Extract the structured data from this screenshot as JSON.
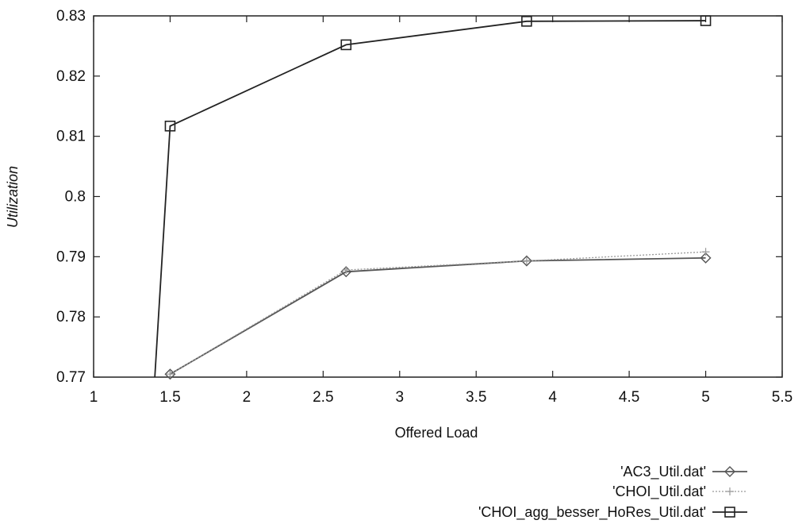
{
  "chart_data": {
    "type": "line",
    "xlabel": "Offered Load",
    "ylabel": "Utilization",
    "xlim": [
      1,
      5.5
    ],
    "ylim": [
      0.77,
      0.83
    ],
    "xticks": [
      "1",
      "1.5",
      "2",
      "2.5",
      "3",
      "3.5",
      "4",
      "4.5",
      "5",
      "5.5"
    ],
    "yticks": [
      "0.77",
      "0.78",
      "0.79",
      "0.8",
      "0.81",
      "0.82",
      "0.83"
    ],
    "legend_position": "bottom-right, below plot",
    "series": [
      {
        "name": "'AC3_Util.dat'",
        "marker": "diamond",
        "line": "solid",
        "color": "#555555",
        "x": [
          1.5,
          2.65,
          3.83,
          5.0
        ],
        "y": [
          0.7705,
          0.7875,
          0.7893,
          0.7898
        ]
      },
      {
        "name": "'CHOI_Util.dat'",
        "marker": "plus",
        "line": "dotted",
        "color": "#999999",
        "x": [
          1.5,
          2.65,
          3.83,
          5.0
        ],
        "y": [
          0.7705,
          0.7878,
          0.7893,
          0.7908
        ]
      },
      {
        "name": "'CHOI_agg_besser_HoRes_Util.dat'",
        "marker": "square",
        "line": "solid",
        "color": "#222222",
        "x": [
          1.4,
          1.5,
          2.65,
          3.83,
          5.0
        ],
        "y": [
          0.77,
          0.8117,
          0.8252,
          0.8291,
          0.8292
        ]
      }
    ]
  }
}
